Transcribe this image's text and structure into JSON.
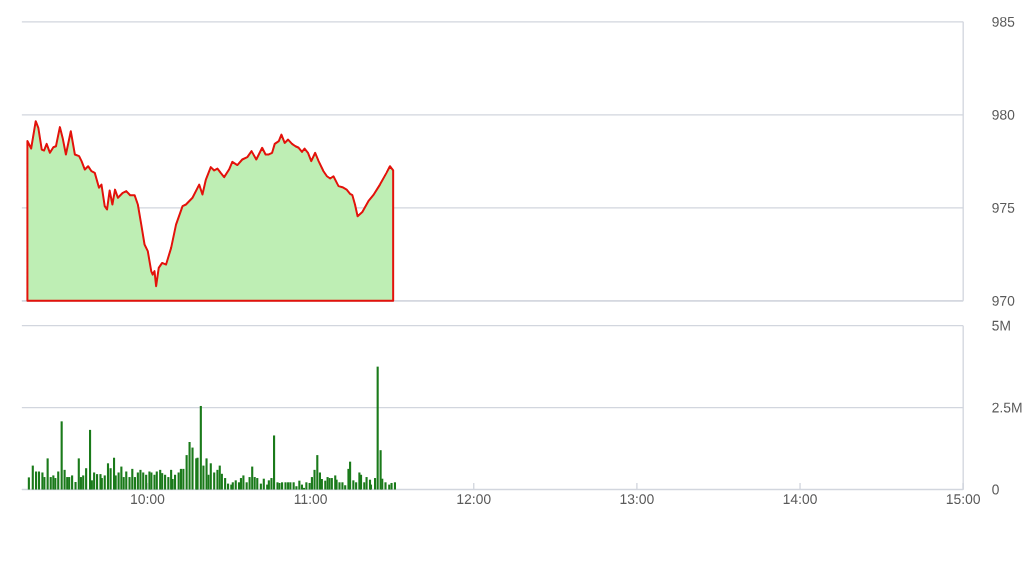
{
  "chart_data": [
    {
      "type": "area",
      "xlim": [
        9.23,
        15.0
      ],
      "ylim": [
        970,
        985
      ],
      "yticks": [
        970,
        975,
        980,
        985
      ],
      "grid": "y",
      "tick_labels": "y",
      "x": [
        9.264,
        9.287,
        9.315,
        9.331,
        9.352,
        9.366,
        9.382,
        9.402,
        9.423,
        9.439,
        9.463,
        9.48,
        9.5,
        9.53,
        9.555,
        9.581,
        9.596,
        9.616,
        9.636,
        9.657,
        9.677,
        9.703,
        9.718,
        9.738,
        9.752,
        9.768,
        9.785,
        9.801,
        9.819,
        9.849,
        9.87,
        9.894,
        9.921,
        9.941,
        9.962,
        9.982,
        10.002,
        10.023,
        10.032,
        10.043,
        10.053,
        10.069,
        10.09,
        10.114,
        10.145,
        10.175,
        10.215,
        10.236,
        10.276,
        10.317,
        10.337,
        10.358,
        10.388,
        10.409,
        10.429,
        10.449,
        10.47,
        10.5,
        10.52,
        10.551,
        10.581,
        10.612,
        10.638,
        10.667,
        10.703,
        10.724,
        10.744,
        10.764,
        10.78,
        10.805,
        10.821,
        10.841,
        10.862,
        10.886,
        10.907,
        10.927,
        10.947,
        10.963,
        10.984,
        11.004,
        11.028,
        11.049,
        11.079,
        11.1,
        11.12,
        11.14,
        11.171,
        11.195,
        11.221,
        11.242,
        11.256,
        11.272,
        11.288,
        11.317,
        11.354,
        11.384,
        11.425,
        11.465,
        11.486,
        11.506
      ],
      "series": [
        {
          "color": "#e3120b",
          "values": [
            978.59,
            978.19,
            979.66,
            979.3,
            978.13,
            978.08,
            978.44,
            977.96,
            978.26,
            978.31,
            979.34,
            978.76,
            977.87,
            979.12,
            977.87,
            977.78,
            977.51,
            977.06,
            977.24,
            976.97,
            976.88,
            976.08,
            976.25,
            975.09,
            974.91,
            975.93,
            975.18,
            975.98,
            975.54,
            975.81,
            975.9,
            975.68,
            975.68,
            975.18,
            974.1,
            973.03,
            972.67,
            971.6,
            971.41,
            971.6,
            970.79,
            971.77,
            972.04,
            971.95,
            972.85,
            974.1,
            975.09,
            975.18,
            975.54,
            976.25,
            975.72,
            976.52,
            977.19,
            977.01,
            977.11,
            976.88,
            976.65,
            977.06,
            977.47,
            977.3,
            977.6,
            977.73,
            978.05,
            977.6,
            978.23,
            977.87,
            977.87,
            977.96,
            978.44,
            978.59,
            978.94,
            978.49,
            978.67,
            978.44,
            978.31,
            978.23,
            978.01,
            978.19,
            977.96,
            977.51,
            977.96,
            977.51,
            976.97,
            976.7,
            976.58,
            976.7,
            976.17,
            976.11,
            975.98,
            975.75,
            975.68,
            975.18,
            974.55,
            974.78,
            975.36,
            975.68,
            976.25,
            976.88,
            977.24,
            977.01
          ]
        }
      ]
    },
    {
      "type": "bar",
      "xlim": [
        9.23,
        15.0
      ],
      "ylim": [
        0,
        5
      ],
      "xticks": [
        {
          "value": 10,
          "label": "10:00"
        },
        {
          "value": 11,
          "label": "11:00"
        },
        {
          "value": 12,
          "label": "12:00"
        },
        {
          "value": 13,
          "label": "13:00"
        },
        {
          "value": 14,
          "label": "14:00"
        },
        {
          "value": 15,
          "label": "15:00"
        }
      ],
      "yticks": [
        0,
        {
          "value": 2.5,
          "label": "2.5M"
        },
        {
          "value": 5,
          "label": "5M"
        }
      ],
      "grid": "y",
      "x": [
        9.273,
        9.297,
        9.317,
        9.335,
        9.356,
        9.368,
        9.388,
        9.407,
        9.423,
        9.435,
        9.453,
        9.474,
        9.492,
        9.508,
        9.52,
        9.538,
        9.559,
        9.579,
        9.592,
        9.606,
        9.624,
        9.648,
        9.659,
        9.673,
        9.691,
        9.712,
        9.72,
        9.738,
        9.758,
        9.774,
        9.795,
        9.805,
        9.823,
        9.84,
        9.854,
        9.87,
        9.89,
        9.907,
        9.923,
        9.941,
        9.957,
        9.974,
        9.992,
        10.012,
        10.024,
        10.043,
        10.057,
        10.078,
        10.09,
        10.108,
        10.128,
        10.145,
        10.154,
        10.169,
        10.191,
        10.205,
        10.22,
        10.24,
        10.258,
        10.276,
        10.299,
        10.307,
        10.327,
        10.343,
        10.362,
        10.374,
        10.388,
        10.409,
        10.429,
        10.443,
        10.456,
        10.476,
        10.494,
        10.514,
        10.523,
        10.541,
        10.561,
        10.573,
        10.588,
        10.608,
        10.626,
        10.642,
        10.657,
        10.673,
        10.695,
        10.713,
        10.734,
        10.744,
        10.76,
        10.776,
        10.797,
        10.809,
        10.825,
        10.846,
        10.862,
        10.876,
        10.896,
        10.913,
        10.931,
        10.947,
        10.959,
        10.974,
        10.994,
        11.008,
        11.024,
        11.041,
        11.057,
        11.069,
        11.09,
        11.104,
        11.116,
        11.13,
        11.151,
        11.159,
        11.177,
        11.195,
        11.212,
        11.232,
        11.242,
        11.262,
        11.279,
        11.299,
        11.309,
        11.329,
        11.343,
        11.364,
        11.37,
        11.395,
        11.411,
        11.429,
        11.439,
        11.459,
        11.482,
        11.496,
        11.517
      ],
      "series": [
        {
          "color": "#1a7a1a",
          "values": [
            0.37,
            0.73,
            0.55,
            0.55,
            0.52,
            0.38,
            0.95,
            0.38,
            0.43,
            0.35,
            0.55,
            2.08,
            0.6,
            0.38,
            0.38,
            0.43,
            0.23,
            0.95,
            0.38,
            0.43,
            0.65,
            1.82,
            0.28,
            0.52,
            0.47,
            0.47,
            0.35,
            0.43,
            0.8,
            0.65,
            0.97,
            0.43,
            0.52,
            0.7,
            0.38,
            0.55,
            0.38,
            0.63,
            0.38,
            0.52,
            0.6,
            0.52,
            0.45,
            0.55,
            0.52,
            0.45,
            0.55,
            0.6,
            0.5,
            0.45,
            0.38,
            0.6,
            0.32,
            0.45,
            0.52,
            0.63,
            0.63,
            1.05,
            1.45,
            1.28,
            0.95,
            0.97,
            2.55,
            0.73,
            0.95,
            0.45,
            0.8,
            0.52,
            0.6,
            0.73,
            0.48,
            0.35,
            0.18,
            0.15,
            0.22,
            0.28,
            0.22,
            0.35,
            0.43,
            0.22,
            0.38,
            0.7,
            0.38,
            0.35,
            0.18,
            0.33,
            0.15,
            0.28,
            0.35,
            1.65,
            0.22,
            0.2,
            0.22,
            0.22,
            0.22,
            0.22,
            0.22,
            0.1,
            0.27,
            0.15,
            0.05,
            0.22,
            0.2,
            0.38,
            0.6,
            1.05,
            0.52,
            0.32,
            0.27,
            0.38,
            0.35,
            0.35,
            0.43,
            0.3,
            0.22,
            0.22,
            0.13,
            0.63,
            0.85,
            0.28,
            0.22,
            0.52,
            0.45,
            0.22,
            0.38,
            0.3,
            0.15,
            0.35,
            3.75,
            1.2,
            0.33,
            0.22,
            0.15,
            0.2,
            0.22
          ]
        }
      ]
    }
  ]
}
